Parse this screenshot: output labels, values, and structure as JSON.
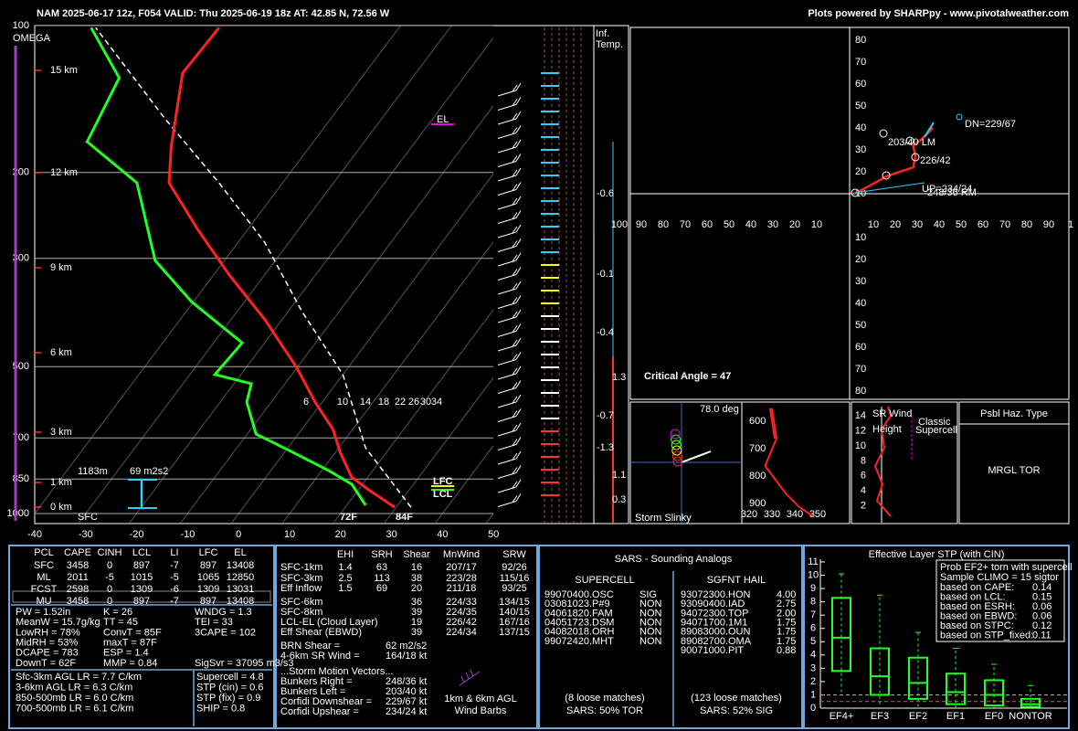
{
  "header": {
    "left": "NAM 2025-06-17 12z, F054  VALID: Thu 2025-06-19 18z  AT: 42.85 N, 72.56 W",
    "right": "Plots powered by SHARPpy - www.pivotalweather.com"
  },
  "skewt": {
    "pressure_ticks": [
      100,
      200,
      300,
      500,
      700,
      850,
      1000
    ],
    "temp_ticks": [
      -40,
      -30,
      -20,
      -10,
      0,
      10,
      20,
      30,
      40,
      50
    ],
    "heights": [
      "15 km",
      "12 km",
      "9 km",
      "6 km",
      "3 km",
      "1 km",
      "0 km"
    ],
    "temperature": {
      "p": [
        971,
        898,
        842,
        749,
        673,
        591,
        502,
        401,
        323,
        260,
        210,
        177,
        125,
        101
      ],
      "t": [
        29.7,
        22.4,
        16.8,
        10.9,
        6.2,
        -1.4,
        -10.1,
        -23.3,
        -37.2,
        -50.2,
        -62.3,
        -67.2,
        -75.8,
        -75.3
      ]
    },
    "dewpoint": {
      "p": [
        962,
        871,
        817,
        749,
        687,
        591,
        542,
        519,
        447,
        368,
        303,
        210,
        173,
        128,
        101
      ],
      "t": [
        23.7,
        17.9,
        11.4,
        1.6,
        -8.3,
        -14.8,
        -16.6,
        -25.1,
        -24.4,
        -40.4,
        -53.6,
        -68.6,
        -84.4,
        -87.5,
        -100.4
      ]
    },
    "parcel": {
      "p": [
        971,
        733,
        519,
        384,
        278,
        210,
        155,
        101
      ],
      "t": [
        32.9,
        15.2,
        0,
        -17.5,
        -34.8,
        -52.5,
        -72.6,
        -99.5
      ]
    },
    "mixing_ratio": [
      6,
      10,
      14,
      18,
      22,
      26,
      30,
      34
    ],
    "labels": {
      "omega": "OMEGA",
      "el": "EL",
      "lfc": "LFC",
      "lcl": "LCL",
      "eff_height": "1183m",
      "eff_srh": "69 m2s2",
      "sfc": "SFC",
      "sfc_dewpoint": "72F",
      "sfc_temp": "84F"
    }
  },
  "inferred_temp": {
    "title": [
      "Inf.",
      "Temp."
    ],
    "values": [
      -0.6,
      -0.1,
      -0.4,
      -0.7,
      -1.3,
      1.3,
      1.1,
      0.3
    ]
  },
  "hodograph": {
    "up_ticks": [
      80,
      70,
      60,
      50,
      40,
      30,
      20,
      10
    ],
    "down_ticks": [
      10,
      20,
      30,
      40,
      50,
      60,
      70,
      80
    ],
    "left_ticks": [
      100,
      90,
      80,
      70,
      60,
      50,
      40,
      30,
      20,
      10
    ],
    "right_ticks": [
      10,
      20,
      30,
      40,
      50,
      60,
      70,
      80,
      90,
      1
    ],
    "u": [
      2,
      8,
      17,
      29,
      30,
      29,
      33,
      38
    ],
    "v": [
      0,
      3,
      8,
      12,
      17,
      22,
      25,
      30
    ],
    "critical_angle": "Critical Angle = 47",
    "dn": "DN=229/67",
    "lm": "203/40 LM",
    "cloud": "226/42",
    "up": "UP=234/24",
    "rm": "248/36 RM"
  },
  "slinky": {
    "angle": "78.0 deg",
    "title": "Storm Slinky"
  },
  "thetae": {
    "yticks": [
      600,
      700,
      800,
      900
    ],
    "xticks": [
      320,
      330,
      340,
      350
    ],
    "theta": [
      330,
      332,
      327,
      336,
      342,
      348
    ],
    "p": [
      553,
      663,
      763,
      863,
      913,
      947
    ]
  },
  "srwind": {
    "title": "SR Wind",
    "ylabel": "Height",
    "classic": [
      "Classic",
      "Supercell"
    ],
    "yticks": [
      2,
      4,
      6,
      8,
      10,
      12,
      14
    ]
  },
  "hazard": {
    "title": "Psbl Haz. Type",
    "value": "MRGL TOR"
  },
  "thermo": {
    "headers": [
      "PCL",
      "CAPE",
      "CINH",
      "LCL",
      "LI",
      "LFC",
      "EL"
    ],
    "rows": [
      [
        "SFC",
        "3458",
        "0",
        "897",
        "-7",
        "897",
        "13408"
      ],
      [
        "ML",
        "2011",
        "-5",
        "1015",
        "-5",
        "1065",
        "12850"
      ],
      [
        "FCST",
        "2598",
        "0",
        "1309",
        "-6",
        "1309",
        "13031"
      ],
      [
        "MU",
        "3458",
        "0",
        "897",
        "-7",
        "897",
        "13408"
      ]
    ],
    "indices": [
      [
        "PW = 1.52in",
        "MeanW = 15.7g/kg",
        "LowRH = 78%",
        "MidRH = 53%",
        "DCAPE = 783",
        "DownT = 62F"
      ],
      [
        "K = 26",
        "TT = 45",
        "ConvT = 85F",
        "maxT = 87F",
        "ESP = 1.4",
        "MMP = 0.84"
      ],
      [
        "WNDG = 1.3",
        "TEI = 33",
        "3CAPE = 102"
      ]
    ],
    "sigsvr": "SigSvr = 37095 m3/s3",
    "lapse_rates": [
      "Sfc-3km AGL LR = 7.7 C/km",
      "3-6km AGL LR = 6.3 C/km",
      "850-500mb LR = 6.0 C/km",
      "700-500mb LR = 6.1 C/km"
    ],
    "composites": [
      "Supercell = 4.8",
      "STP (cin) = 0.6",
      "STP (fix) = 0.9",
      "SHIP = 0.8"
    ]
  },
  "kinematics": {
    "headers": [
      "EHI",
      "SRH",
      "Shear",
      "MnWind",
      "SRW"
    ],
    "rows": [
      [
        "SFC-1km",
        "1.4",
        "63",
        "16",
        "207/17",
        "92/26"
      ],
      [
        "SFC-3km",
        "2.5",
        "113",
        "38",
        "223/28",
        "115/16"
      ],
      [
        "Eff Inflow",
        "1.5",
        "69",
        "20",
        "211/18",
        "93/25"
      ],
      [
        "SFC-6km",
        null,
        null,
        "36",
        "224/33",
        "134/15"
      ],
      [
        "SFC-8km",
        null,
        null,
        "39",
        "224/35",
        "140/15"
      ],
      [
        "LCL-EL (Cloud Layer)",
        null,
        null,
        "19",
        "226/42",
        "167/16"
      ],
      [
        "Eff Shear (EBWD)",
        null,
        null,
        "39",
        "224/34",
        "137/15"
      ]
    ],
    "extra": [
      [
        "BRN Shear =",
        "62 m2/s2"
      ],
      [
        "4-6km SR Wind =",
        "164/18 kt"
      ]
    ],
    "storm_title": "...Storm Motion Vectors...",
    "storm": [
      [
        "Bunkers Right =",
        "248/36 kt"
      ],
      [
        "Bunkers Left =",
        "203/40 kt"
      ],
      [
        "Corfidi Downshear =",
        "229/67 kt"
      ],
      [
        "Corfidi Upshear =",
        "234/24 kt"
      ]
    ],
    "barbs": [
      "1km & 6km AGL",
      "Wind Barbs"
    ]
  },
  "sars": {
    "title": "SARS - Sounding Analogs",
    "supercell_title": "SUPERCELL",
    "hail_title": "SGFNT HAIL",
    "supercell": [
      [
        "99070400.OSC",
        "SIG"
      ],
      [
        "03081023.P#9",
        "NON"
      ],
      [
        "04061820.FAM",
        "NON"
      ],
      [
        "04051723.DSM",
        "NON"
      ],
      [
        "04082018.ORH",
        "NON"
      ],
      [
        "99072420.MHT",
        "NON"
      ]
    ],
    "hail": [
      [
        "93072300.HON",
        "4.00"
      ],
      [
        "93090400.IAD",
        "2.75"
      ],
      [
        "94072300.TOP",
        "2.00"
      ],
      [
        "94071700.1M1",
        "1.75"
      ],
      [
        "89083000.OUN",
        "1.75"
      ],
      [
        "89082700.OMA",
        "1.75"
      ],
      [
        "90071000.PIT",
        "0.88"
      ]
    ],
    "supercell_foot": [
      "(8 loose matches)",
      "SARS: 50% TOR"
    ],
    "hail_foot": [
      "(123 loose matches)",
      "SARS: 52% SIG"
    ]
  },
  "stp": {
    "title": "Effective Layer STP (with CIN)",
    "yticks": [
      0,
      1,
      2,
      3,
      4,
      5,
      6,
      7,
      8,
      9,
      10,
      11
    ],
    "ylim": [
      0,
      11
    ],
    "categories": [
      "EF4+",
      "EF3",
      "EF2",
      "EF1",
      "EF0",
      "NONTOR"
    ],
    "boxes": [
      {
        "low": 1.2,
        "q1": 2.8,
        "median": 5.3,
        "q3": 8.3,
        "high": 10.1
      },
      {
        "low": 0.3,
        "q1": 1,
        "median": 2.4,
        "q3": 4.5,
        "high": 8.5
      },
      {
        "low": 0.1,
        "q1": 0.7,
        "median": 1.9,
        "q3": 3.8,
        "high": 5.7
      },
      {
        "low": 0,
        "q1": 0.3,
        "median": 1.2,
        "q3": 2.6,
        "high": 4.5
      },
      {
        "low": 0,
        "q1": 0.2,
        "median": 1,
        "q3": 2.1,
        "high": 3.3
      },
      {
        "low": 0,
        "q1": 0.1,
        "median": 0.3,
        "q3": 0.7,
        "high": 1.7
      }
    ],
    "legend_title": [
      "Prob EF2+ torn with supercell",
      "Sample CLIMO = 15 sigtor"
    ],
    "legend": [
      [
        "based on CAPE:",
        "0.14"
      ],
      [
        "based on LCL:",
        "0.15"
      ],
      [
        "based on ESRH:",
        "0.06"
      ],
      [
        "based on EBWD:",
        "0.06"
      ],
      [
        "based on STPC:",
        "0.12"
      ],
      [
        "based on STP_fixed:",
        "0.11"
      ]
    ]
  }
}
